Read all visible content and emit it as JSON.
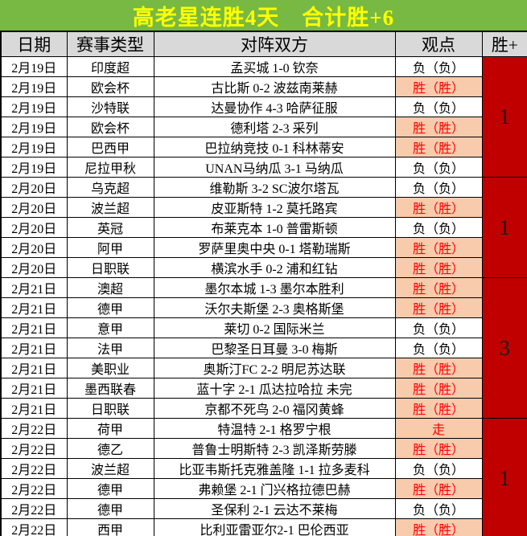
{
  "title": "高老星连胜4天　合计胜+6",
  "columns": {
    "date": "日期",
    "league": "赛事类型",
    "match": "对阵双方",
    "opinion": "观点",
    "score": "胜+"
  },
  "colors": {
    "title_bg": "#77B943",
    "title_text": "#FFFF00",
    "header_bg": "#D9D9D9",
    "win_bg": "#F8CBAD",
    "win_text": "#FF0000",
    "score_bg": "#C00000"
  },
  "rows": [
    {
      "date": "2月19日",
      "league": "印度超",
      "match": "孟买城 1-0 钦奈",
      "opinion": "负（负）",
      "highlight": false
    },
    {
      "date": "2月19日",
      "league": "欧会杯",
      "match": "古比斯 0-2 波兹南莱赫",
      "opinion": "胜（胜）",
      "highlight": true
    },
    {
      "date": "2月19日",
      "league": "沙特联",
      "match": "达曼协作 4-3 哈萨征服",
      "opinion": "负（负）",
      "highlight": false
    },
    {
      "date": "2月19日",
      "league": "欧会杯",
      "match": "德利塔 2-3 采列",
      "opinion": "胜（胜）",
      "highlight": true
    },
    {
      "date": "2月19日",
      "league": "巴西甲",
      "match": "巴拉纳竞技 0-1 科林蒂安",
      "opinion": "胜（胜）",
      "highlight": true
    },
    {
      "date": "2月19日",
      "league": "尼拉甲秋",
      "match": "UNAN马纳瓜 3-1 马纳瓜",
      "opinion": "负（负）",
      "highlight": false
    },
    {
      "date": "2月20日",
      "league": "乌克超",
      "match": "维勒斯 3-2 SC波尔塔瓦",
      "opinion": "负（负）",
      "highlight": false
    },
    {
      "date": "2月20日",
      "league": "波兰超",
      "match": "皮亚斯特 1-2 莫托路宾",
      "opinion": "胜（胜）",
      "highlight": true
    },
    {
      "date": "2月20日",
      "league": "英冠",
      "match": "布莱克本 1-0 普雷斯顿",
      "opinion": "负（负）",
      "highlight": false
    },
    {
      "date": "2月20日",
      "league": "阿甲",
      "match": "罗萨里奥中央 0-1 塔勒瑞斯",
      "opinion": "胜（胜）",
      "highlight": true
    },
    {
      "date": "2月20日",
      "league": "日职联",
      "match": "横滨水手 0-2 浦和红钻",
      "opinion": "胜（胜）",
      "highlight": true
    },
    {
      "date": "2月21日",
      "league": "澳超",
      "match": "墨尔本城 1-3 墨尔本胜利",
      "opinion": "胜（胜）",
      "highlight": true
    },
    {
      "date": "2月21日",
      "league": "德甲",
      "match": "沃尔夫斯堡 2-3 奥格斯堡",
      "opinion": "胜（胜）",
      "highlight": true
    },
    {
      "date": "2月21日",
      "league": "意甲",
      "match": "莱切 0-2 国际米兰",
      "opinion": "负（负）",
      "highlight": false
    },
    {
      "date": "2月21日",
      "league": "法甲",
      "match": "巴黎圣日耳曼 3-0 梅斯",
      "opinion": "负（负）",
      "highlight": false
    },
    {
      "date": "2月21日",
      "league": "美职业",
      "match": "奥斯汀FC 2-2 明尼苏达联",
      "opinion": "胜（胜）",
      "highlight": true
    },
    {
      "date": "2月21日",
      "league": "墨西联春",
      "match": "蓝十字 2-1 瓜达拉哈拉 未完",
      "opinion": "胜（胜）",
      "highlight": true
    },
    {
      "date": "2月21日",
      "league": "日职联",
      "match": "京都不死鸟 2-0 福冈黄蜂",
      "opinion": "胜（胜）",
      "highlight": true
    },
    {
      "date": "2月22日",
      "league": "荷甲",
      "match": "特温特 2-1 格罗宁根",
      "opinion": "走",
      "highlight": true
    },
    {
      "date": "2月22日",
      "league": "德乙",
      "match": "普鲁士明斯特 2-3 凯泽斯劳滕",
      "opinion": "胜（胜）",
      "highlight": true
    },
    {
      "date": "2月22日",
      "league": "波兰超",
      "match": "比亚韦斯托克雅盖隆 1-1 拉多麦科",
      "opinion": "负（负）",
      "highlight": false
    },
    {
      "date": "2月22日",
      "league": "德甲",
      "match": "弗赖堡 2-1 门兴格拉德巴赫",
      "opinion": "胜（胜）",
      "highlight": true
    },
    {
      "date": "2月22日",
      "league": "德甲",
      "match": "圣保利 2-1 云达不莱梅",
      "opinion": "负（负）",
      "highlight": false
    },
    {
      "date": "2月22日",
      "league": "西甲",
      "match": "比利亚雷亚尔2-1 巴伦西亚",
      "opinion": "胜（胜）",
      "highlight": true
    }
  ],
  "groups": [
    {
      "span": 6,
      "value": "1"
    },
    {
      "span": 5,
      "value": "1"
    },
    {
      "span": 7,
      "value": "3"
    },
    {
      "span": 6,
      "value": "1"
    }
  ]
}
